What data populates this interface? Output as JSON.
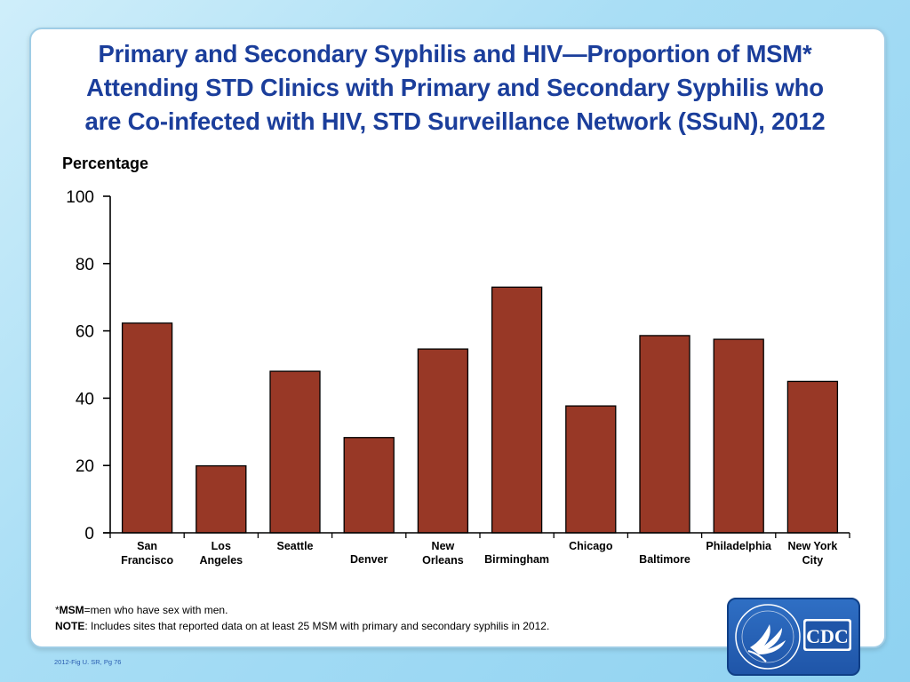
{
  "title_lines": [
    "Primary and Secondary Syphilis and HIV—Proportion of MSM*",
    "Attending STD Clinics with Primary and Secondary Syphilis who",
    "are Co-infected with HIV, STD Surveillance Network (SSuN), 2012"
  ],
  "footnotes": {
    "msm_prefix": "*",
    "msm_term": "MSM",
    "msm_text": "=men who have sex with men.",
    "note_term": "NOTE",
    "note_text": ": Includes sites that reported data on at least 25 MSM with primary and secondary syphilis in 2012."
  },
  "fig_ref": "2012-Fig U.  SR, Pg 76",
  "logo": {
    "text": "CDC",
    "icon": "hhs-eagle-seal-icon"
  },
  "colors": {
    "bar": "#983826",
    "title": "#1b3e9b",
    "accent": "#1f55a8"
  },
  "chart_data": {
    "type": "bar",
    "title": "Primary and Secondary Syphilis and HIV—Proportion of MSM* Attending STD Clinics with Primary and Secondary Syphilis who are Co-infected with HIV, STD Surveillance Network (SSuN), 2012",
    "ylabel": "Percentage",
    "xlabel": "",
    "ylim": [
      0,
      100
    ],
    "yticks": [
      0,
      20,
      40,
      60,
      80,
      100
    ],
    "grid": false,
    "categories": [
      [
        "San",
        "Francisco"
      ],
      [
        "Los",
        "Angeles"
      ],
      [
        "Seattle"
      ],
      [
        "Denver"
      ],
      [
        "New",
        "Orleans"
      ],
      [
        "Birmingham"
      ],
      [
        "Chicago"
      ],
      [
        "Baltimore"
      ],
      [
        "Philadelphia"
      ],
      [
        "New York",
        "City"
      ]
    ],
    "values": [
      62.3,
      19.9,
      48.0,
      28.3,
      54.6,
      73.0,
      37.7,
      58.6,
      57.5,
      45.0
    ]
  }
}
